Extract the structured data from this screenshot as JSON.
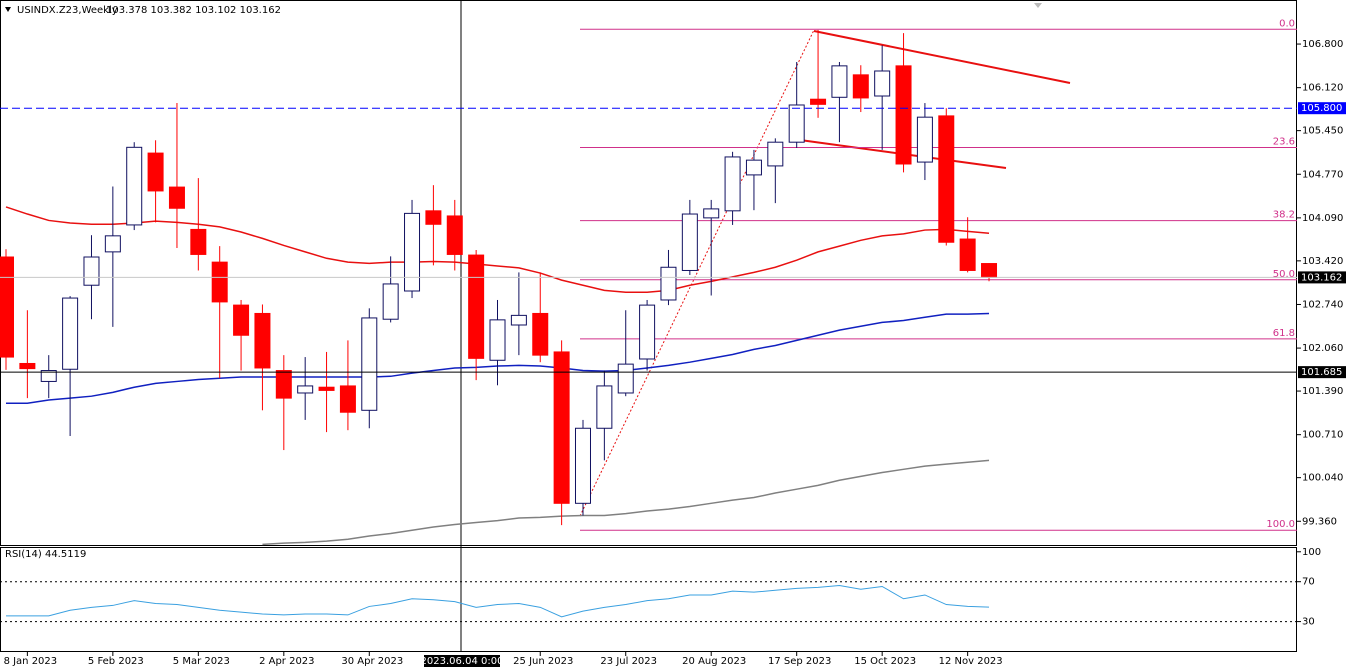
{
  "chart_data": [
    {
      "type": "candlestick",
      "title": "USINDX.Z23,Weekly",
      "quote": "103.378 103.382 103.102 103.162",
      "up_color": "#ffffff",
      "up_border": "#101060",
      "down_color": "#ff0000",
      "categories": [
        null,
        "8 Jan 2023",
        null,
        null,
        null,
        "5 Feb 2023",
        null,
        null,
        null,
        "5 Mar 2023",
        null,
        null,
        null,
        "2 Apr 2023",
        null,
        null,
        null,
        "30 Apr 2023",
        null,
        null,
        null,
        null,
        null,
        null,
        null,
        "25 Jun 2023",
        null,
        null,
        null,
        "23 Jul 2023",
        null,
        null,
        null,
        "20 Aug 2023",
        null,
        null,
        null,
        "17 Sep 2023",
        null,
        null,
        null,
        "15 Oct 2023",
        null,
        null,
        null,
        "12 Nov 2023",
        null
      ],
      "open": [
        103.48,
        101.82,
        101.54,
        101.73,
        103.04,
        103.56,
        103.98,
        105.1,
        104.57,
        103.91,
        103.4,
        102.73,
        102.6,
        101.71,
        101.36,
        101.45,
        101.47,
        101.09,
        102.51,
        102.95,
        104.2,
        104.12,
        103.51,
        101.87,
        102.42,
        102.6,
        102.0,
        99.64,
        100.81,
        101.36,
        101.89,
        102.81,
        103.27,
        104.09,
        104.2,
        104.76,
        104.9,
        105.27,
        105.94,
        105.97,
        106.32,
        105.99,
        106.46,
        104.96,
        105.68,
        103.76,
        103.378
      ],
      "high": [
        103.6,
        102.65,
        101.95,
        102.87,
        103.82,
        104.58,
        105.27,
        105.3,
        105.88,
        104.71,
        103.65,
        102.81,
        102.74,
        101.95,
        101.92,
        102.0,
        102.18,
        102.68,
        103.49,
        104.37,
        104.6,
        104.37,
        103.59,
        102.81,
        103.24,
        103.24,
        102.18,
        100.94,
        101.71,
        102.65,
        102.81,
        103.59,
        104.37,
        104.37,
        105.12,
        105.15,
        105.33,
        106.52,
        107.02,
        106.52,
        106.47,
        106.78,
        106.97,
        105.88,
        105.8,
        104.1,
        103.382
      ],
      "low": [
        101.72,
        101.28,
        101.28,
        100.69,
        102.51,
        102.39,
        103.9,
        104.02,
        103.62,
        103.27,
        101.59,
        101.71,
        101.09,
        100.47,
        100.94,
        100.75,
        100.78,
        100.81,
        102.46,
        102.84,
        103.35,
        103.27,
        101.56,
        101.48,
        101.95,
        101.84,
        99.3,
        99.45,
        100.31,
        101.31,
        101.71,
        102.73,
        103.2,
        102.88,
        103.98,
        104.21,
        104.32,
        105.18,
        105.65,
        105.27,
        105.74,
        105.15,
        104.8,
        104.68,
        103.66,
        103.24,
        103.102
      ],
      "close": [
        101.92,
        101.74,
        101.71,
        102.84,
        103.48,
        103.81,
        105.19,
        104.51,
        104.24,
        103.52,
        102.78,
        102.26,
        101.75,
        101.28,
        101.47,
        101.4,
        101.06,
        102.53,
        103.06,
        104.16,
        103.99,
        103.52,
        101.9,
        102.5,
        102.57,
        101.95,
        99.64,
        100.81,
        101.47,
        101.81,
        102.73,
        103.32,
        104.15,
        104.23,
        105.04,
        104.99,
        105.27,
        105.85,
        105.86,
        106.46,
        105.96,
        106.38,
        104.93,
        105.66,
        103.71,
        103.27,
        103.162
      ],
      "moving_averages": [
        {
          "color": "#e81010",
          "values": [
            104.26,
            104.15,
            104.05,
            104.01,
            103.99,
            103.99,
            104.01,
            104.04,
            104.02,
            103.99,
            103.95,
            103.87,
            103.77,
            103.66,
            103.56,
            103.46,
            103.4,
            103.38,
            103.4,
            103.4,
            103.41,
            103.4,
            103.37,
            103.34,
            103.31,
            103.23,
            103.12,
            103.04,
            102.96,
            102.93,
            102.93,
            102.96,
            103.04,
            103.1,
            103.17,
            103.24,
            103.32,
            103.43,
            103.56,
            103.65,
            103.74,
            103.81,
            103.84,
            103.9,
            103.91,
            103.88,
            103.85
          ]
        },
        {
          "color": "#1020c0",
          "values": [
            101.2,
            101.2,
            101.25,
            101.28,
            101.31,
            101.37,
            101.45,
            101.51,
            101.54,
            101.57,
            101.59,
            101.61,
            101.61,
            101.61,
            101.61,
            101.61,
            101.61,
            101.61,
            101.62,
            101.67,
            101.71,
            101.75,
            101.76,
            101.78,
            101.79,
            101.78,
            101.75,
            101.71,
            101.7,
            101.71,
            101.75,
            101.79,
            101.84,
            101.9,
            101.96,
            102.04,
            102.1,
            102.18,
            102.26,
            102.34,
            102.4,
            102.46,
            102.49,
            102.54,
            102.59,
            102.59,
            102.6
          ]
        },
        {
          "color": "#808080",
          "values": [
            null,
            null,
            null,
            null,
            null,
            null,
            null,
            null,
            null,
            null,
            null,
            null,
            99.0,
            99.02,
            99.03,
            99.05,
            99.08,
            99.13,
            99.17,
            99.22,
            99.27,
            99.31,
            99.34,
            99.37,
            99.41,
            99.42,
            99.44,
            99.45,
            99.45,
            99.48,
            99.52,
            99.55,
            99.59,
            99.64,
            99.69,
            99.73,
            99.8,
            99.86,
            99.92,
            100.0,
            100.06,
            100.12,
            100.17,
            100.22,
            100.25,
            100.28,
            100.31
          ]
        }
      ],
      "ylim": [
        98.99,
        107.44
      ],
      "yticks": [
        {
          "value": 106.8,
          "label": "106.800"
        },
        {
          "value": 106.12,
          "label": "106.120"
        },
        {
          "value": 105.45,
          "label": "105.450"
        },
        {
          "value": 104.77,
          "label": "104.770"
        },
        {
          "value": 104.09,
          "label": "104.090"
        },
        {
          "value": 103.42,
          "label": "103.420"
        },
        {
          "value": 102.74,
          "label": "102.740"
        },
        {
          "value": 102.06,
          "label": "102.060"
        },
        {
          "value": 101.39,
          "label": "101.390"
        },
        {
          "value": 100.71,
          "label": "100.710"
        },
        {
          "value": 100.04,
          "label": "100.040"
        },
        {
          "value": 99.36,
          "label": "99.360"
        }
      ],
      "fibonacci": {
        "color": "#d0308a",
        "high": 107.03,
        "low": 99.22,
        "levels": [
          {
            "value": 0,
            "label": "0.0"
          },
          {
            "value": 23.6,
            "label": "23.6"
          },
          {
            "value": 38.2,
            "label": "38.2"
          },
          {
            "value": 50,
            "label": "50.0"
          },
          {
            "value": 61.8,
            "label": "61.8"
          },
          {
            "value": 100,
            "label": "100.0"
          }
        ]
      },
      "price_lines": [
        {
          "value": 105.8,
          "label": "105.800",
          "color": "#0000ff",
          "style": "dashed"
        },
        {
          "value": 103.162,
          "label": "103.162",
          "color": "#000000",
          "style": "solid"
        }
      ],
      "crosshair": {
        "price": {
          "value": 101.685,
          "label": "101.685"
        },
        "x_label": "2023.06.04 0:00"
      }
    },
    {
      "type": "line",
      "title": "RSI(14) 44.5119",
      "color": "#3aa0e0",
      "values": [
        35.7,
        35.7,
        35.7,
        41.4,
        44.3,
        46.2,
        51.0,
        48.1,
        47.1,
        44.3,
        41.4,
        39.5,
        37.6,
        36.7,
        37.6,
        37.6,
        36.7,
        45.2,
        48.1,
        52.9,
        51.9,
        50.0,
        44.3,
        47.1,
        48.1,
        44.3,
        34.8,
        40.5,
        44.3,
        47.1,
        51.0,
        52.9,
        56.7,
        56.7,
        60.5,
        59.5,
        61.4,
        63.3,
        64.3,
        66.2,
        62.4,
        65.2,
        52.9,
        56.7,
        47.1,
        45.2,
        44.5119
      ],
      "ylim": [
        -0.5,
        103.8
      ],
      "yticks": [
        100,
        70,
        30
      ],
      "levels": [
        70,
        30
      ]
    }
  ]
}
